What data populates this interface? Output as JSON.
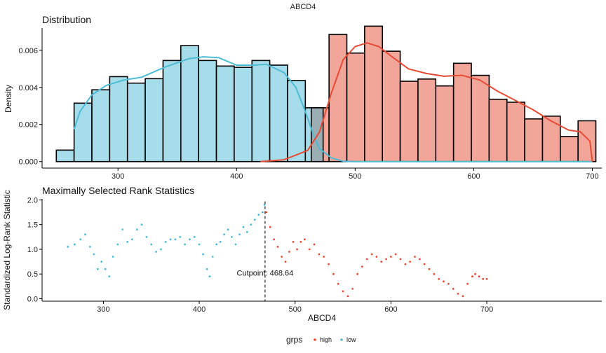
{
  "figure": {
    "title": "ABCD4",
    "legend": {
      "title": "grps",
      "items": [
        {
          "label": "high",
          "color": "#E64B35"
        },
        {
          "label": "low",
          "color": "#4DBBD5"
        }
      ],
      "placement": "bottom"
    },
    "colors": {
      "high": "#E64B35",
      "low": "#4DBBD5",
      "high_fill": "#F2A599",
      "low_fill": "#A6DDEA",
      "overlap_fill": "#9AAEB3",
      "cutpoint_line": "#222222"
    }
  },
  "chart_data": [
    {
      "type": "bar",
      "subtype": "histogram-with-density",
      "title": "Distribution",
      "xlabel": "",
      "ylabel": "Density",
      "xlim": [
        236,
        708
      ],
      "ylim": [
        -0.00035,
        0.0072
      ],
      "xticks": [
        300,
        400,
        500,
        600,
        700
      ],
      "yticks": [
        0.0,
        0.002,
        0.004,
        0.006
      ],
      "ytick_labels": [
        "0.000",
        "0.002",
        "0.004",
        "0.006"
      ],
      "bin_width": 15,
      "series": [
        {
          "name": "low",
          "color": "#4DBBD5",
          "bins": [
            {
              "x0": 248,
              "x1": 263,
              "value": 0.00062
            },
            {
              "x0": 263,
              "x1": 278,
              "value": 0.00315
            },
            {
              "x0": 278,
              "x1": 293,
              "value": 0.00387
            },
            {
              "x0": 293,
              "x1": 308,
              "value": 0.00458
            },
            {
              "x0": 308,
              "x1": 323,
              "value": 0.00423
            },
            {
              "x0": 323,
              "x1": 338,
              "value": 0.00447
            },
            {
              "x0": 338,
              "x1": 353,
              "value": 0.00545
            },
            {
              "x0": 353,
              "x1": 368,
              "value": 0.00625
            },
            {
              "x0": 368,
              "x1": 383,
              "value": 0.00545
            },
            {
              "x0": 383,
              "x1": 398,
              "value": 0.00515
            },
            {
              "x0": 398,
              "x1": 413,
              "value": 0.00508
            },
            {
              "x0": 413,
              "x1": 428,
              "value": 0.00545
            },
            {
              "x0": 428,
              "x1": 443,
              "value": 0.0052
            },
            {
              "x0": 443,
              "x1": 458,
              "value": 0.00437
            },
            {
              "x0": 458,
              "x1": 473,
              "value": 0.0029
            }
          ],
          "density": {
            "x": [
              263,
              268,
              278,
              290,
              305,
              320,
              340,
              360,
              372,
              385,
              400,
              415,
              425,
              440,
              450,
              458,
              465,
              470,
              480,
              490,
              500,
              700
            ],
            "y": [
              0.00175,
              0.0027,
              0.0036,
              0.0041,
              0.0044,
              0.00455,
              0.0051,
              0.00555,
              0.00565,
              0.0056,
              0.0052,
              0.0052,
              0.00525,
              0.0048,
              0.004,
              0.0027,
              0.0014,
              0.0007,
              0.0002,
              2e-05,
              0,
              0
            ]
          }
        },
        {
          "name": "high",
          "color": "#E64B35",
          "bins": [
            {
              "x0": 463,
              "x1": 478,
              "value": 0.0029
            },
            {
              "x0": 478,
              "x1": 493,
              "value": 0.00685
            },
            {
              "x0": 493,
              "x1": 508,
              "value": 0.00585
            },
            {
              "x0": 508,
              "x1": 523,
              "value": 0.0073
            },
            {
              "x0": 523,
              "x1": 538,
              "value": 0.00595
            },
            {
              "x0": 538,
              "x1": 553,
              "value": 0.00433
            },
            {
              "x0": 553,
              "x1": 568,
              "value": 0.00445
            },
            {
              "x0": 568,
              "x1": 583,
              "value": 0.00408
            },
            {
              "x0": 583,
              "x1": 598,
              "value": 0.0053
            },
            {
              "x0": 598,
              "x1": 613,
              "value": 0.00465
            },
            {
              "x0": 613,
              "x1": 628,
              "value": 0.00336
            },
            {
              "x0": 628,
              "x1": 643,
              "value": 0.0032
            },
            {
              "x0": 643,
              "x1": 658,
              "value": 0.0023
            },
            {
              "x0": 658,
              "x1": 673,
              "value": 0.00245
            },
            {
              "x0": 673,
              "x1": 688,
              "value": 0.00135
            },
            {
              "x0": 688,
              "x1": 703,
              "value": 0.0022
            }
          ],
          "density": {
            "x": [
              420,
              440,
              460,
              470,
              480,
              490,
              500,
              510,
              520,
              530,
              545,
              560,
              575,
              590,
              605,
              620,
              635,
              650,
              665,
              680,
              690,
              698,
              700
            ],
            "y": [
              0,
              0.0001,
              0.0006,
              0.0016,
              0.0037,
              0.0055,
              0.0062,
              0.0064,
              0.0062,
              0.0057,
              0.005,
              0.00475,
              0.0046,
              0.00465,
              0.0044,
              0.0038,
              0.0033,
              0.0028,
              0.0022,
              0.0017,
              0.0016,
              0.0011,
              0
            ]
          }
        }
      ]
    },
    {
      "type": "scatter",
      "title": "Maximally Selected Rank Statistics",
      "xlabel": "ABCD4",
      "ylabel": "Standardized Log-Rank Statistic",
      "xlim": [
        236,
        820
      ],
      "ylim": [
        -0.05,
        2.02
      ],
      "xticks": [
        300,
        400,
        500,
        600,
        700
      ],
      "yticks": [
        0.0,
        0.5,
        1.0,
        1.5,
        2.0
      ],
      "ytick_labels": [
        "0.0",
        "0.5",
        "1.0",
        "1.5",
        "2.0"
      ],
      "cutpoint": {
        "x": 468.64,
        "label": "Cutpoint: 468.64"
      },
      "series": [
        {
          "name": "low",
          "color": "#4DBBD5",
          "x": [
            263,
            270,
            276,
            281,
            286,
            290,
            294,
            298,
            302,
            306,
            310,
            315,
            320,
            325,
            330,
            335,
            340,
            345,
            350,
            355,
            360,
            365,
            370,
            375,
            380,
            385,
            390,
            395,
            400,
            404,
            408,
            411,
            414,
            418,
            422,
            426,
            430,
            434,
            438,
            442,
            446,
            450,
            454,
            458,
            462,
            466,
            468
          ],
          "y": [
            1.05,
            1.1,
            1.2,
            1.3,
            1.05,
            0.9,
            0.6,
            0.75,
            0.6,
            0.45,
            0.85,
            1.1,
            1.4,
            1.15,
            1.2,
            1.4,
            1.5,
            1.25,
            1.1,
            0.95,
            1.0,
            1.15,
            1.2,
            1.2,
            1.25,
            1.1,
            1.2,
            1.25,
            1.1,
            0.9,
            0.6,
            0.45,
            0.85,
            1.1,
            1.15,
            1.3,
            1.4,
            1.25,
            1.1,
            1.3,
            1.45,
            1.35,
            1.5,
            1.6,
            1.7,
            1.75,
            1.9
          ]
        },
        {
          "name": "high",
          "color": "#E64B35",
          "x": [
            470,
            474,
            478,
            482,
            486,
            490,
            494,
            498,
            502,
            506,
            510,
            515,
            520,
            525,
            530,
            535,
            540,
            545,
            550,
            555,
            560,
            565,
            570,
            575,
            580,
            585,
            590,
            595,
            600,
            605,
            610,
            615,
            620,
            625,
            630,
            635,
            640,
            645,
            650,
            655,
            660,
            665,
            670,
            675,
            680,
            685,
            688,
            692,
            696,
            700
          ],
          "y": [
            1.75,
            1.45,
            1.2,
            1.05,
            0.85,
            0.75,
            0.95,
            1.15,
            1.0,
            1.15,
            1.2,
            1.0,
            1.1,
            0.9,
            0.85,
            0.7,
            0.5,
            0.3,
            0.15,
            0.05,
            0.2,
            0.5,
            0.65,
            0.8,
            0.9,
            0.85,
            0.75,
            0.8,
            0.85,
            0.9,
            0.8,
            0.7,
            0.75,
            0.85,
            0.8,
            0.7,
            0.6,
            0.5,
            0.4,
            0.35,
            0.3,
            0.2,
            0.1,
            0.05,
            0.3,
            0.45,
            0.5,
            0.45,
            0.4,
            0.4
          ]
        }
      ]
    }
  ]
}
